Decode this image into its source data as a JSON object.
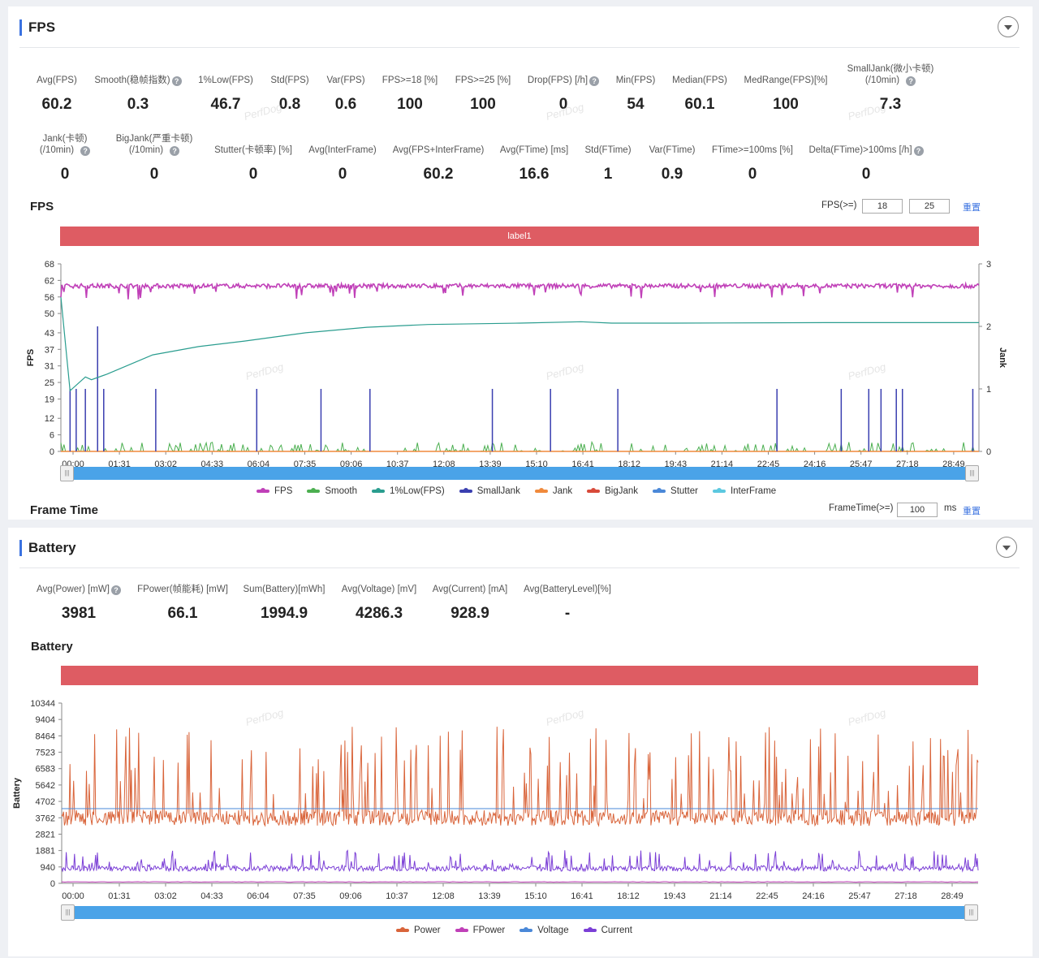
{
  "fps_panel": {
    "title": "FPS",
    "metrics_row1": [
      {
        "label": "Avg(FPS)",
        "value": "60.2",
        "help": false
      },
      {
        "label": "Smooth(稳帧指数)",
        "value": "0.3",
        "help": true
      },
      {
        "label": "1%Low(FPS)",
        "value": "46.7",
        "help": false
      },
      {
        "label": "Std(FPS)",
        "value": "0.8",
        "help": false
      },
      {
        "label": "Var(FPS)",
        "value": "0.6",
        "help": false
      },
      {
        "label": "FPS>=18 [%]",
        "value": "100",
        "help": false
      },
      {
        "label": "FPS>=25 [%]",
        "value": "100",
        "help": false
      },
      {
        "label": "Drop(FPS) [/h]",
        "value": "0",
        "help": true
      },
      {
        "label": "Min(FPS)",
        "value": "54",
        "help": false
      },
      {
        "label": "Median(FPS)",
        "value": "60.1",
        "help": false
      },
      {
        "label": "MedRange(FPS)[%]",
        "value": "100",
        "help": false
      },
      {
        "label": "SmallJank(微小卡顿)",
        "label2": "(/10min)",
        "value": "7.3",
        "help": true
      }
    ],
    "metrics_row2": [
      {
        "label": "Jank(卡顿)",
        "label2": "(/10min)",
        "value": "0",
        "help": true
      },
      {
        "label": "BigJank(严重卡顿)",
        "label2": "(/10min)",
        "value": "0",
        "help": true
      },
      {
        "label": "Stutter(卡顿率) [%]",
        "value": "0",
        "help": false
      },
      {
        "label": "Avg(InterFrame)",
        "value": "0",
        "help": false
      },
      {
        "label": "Avg(FPS+InterFrame)",
        "value": "60.2",
        "help": false
      },
      {
        "label": "Avg(FTime) [ms]",
        "value": "16.6",
        "help": false
      },
      {
        "label": "Std(FTime)",
        "value": "1",
        "help": false
      },
      {
        "label": "Var(FTime)",
        "value": "0.9",
        "help": false
      },
      {
        "label": "FTime>=100ms [%]",
        "value": "0",
        "help": false
      },
      {
        "label": "Delta(FTime)>100ms [/h]",
        "value": "0",
        "help": true
      }
    ],
    "chart_title": "FPS",
    "threshold_label": "FPS(>=)",
    "threshold_1": "18",
    "threshold_2": "25",
    "reset_label": "重置",
    "label_band": "label1",
    "frame_time_title": "Frame Time",
    "frametime_label": "FrameTime(>=)",
    "frametime_value": "100",
    "frametime_unit": "ms",
    "frametime_reset": "重置",
    "slider_handle_glyph": "|||",
    "watermark": "PerfDog"
  },
  "battery_panel": {
    "title": "Battery",
    "metrics": [
      {
        "label": "Avg(Power) [mW]",
        "value": "3981",
        "help": true
      },
      {
        "label": "FPower(帧能耗) [mW]",
        "value": "66.1",
        "help": false
      },
      {
        "label": "Sum(Battery)[mWh]",
        "value": "1994.9",
        "help": false
      },
      {
        "label": "Avg(Voltage) [mV]",
        "value": "4286.3",
        "help": false
      },
      {
        "label": "Avg(Current) [mA]",
        "value": "928.9",
        "help": false
      },
      {
        "label": "Avg(BatteryLevel)[%]",
        "value": "-",
        "help": false
      }
    ],
    "chart_title": "Battery",
    "label_band": "",
    "slider_handle_glyph": "|||",
    "watermark": "PerfDog"
  },
  "colors": {
    "fps": "#c040b8",
    "smooth": "#4caf50",
    "low1": "#2a9d8f",
    "smalljank": "#3a3fb0",
    "jank": "#f08a3c",
    "bigjank": "#d84a3a",
    "stutter": "#4a88d8",
    "interframe": "#5cc8e0",
    "power": "#d9643a",
    "fpower": "#c040b8",
    "voltage": "#4a88d8",
    "current": "#7b3fd6",
    "band": "#de5c63",
    "accent": "#3a72e0"
  },
  "chart_data": [
    {
      "type": "line",
      "title": "FPS",
      "ylabel": "FPS",
      "y2label": "Jank",
      "x_ticks": [
        "00:00",
        "01:31",
        "03:02",
        "04:33",
        "06:04",
        "07:35",
        "09:06",
        "10:37",
        "12:08",
        "13:39",
        "15:10",
        "16:41",
        "18:12",
        "19:43",
        "21:14",
        "22:45",
        "24:16",
        "25:47",
        "27:18",
        "28:49"
      ],
      "y_ticks": [
        0,
        6,
        12,
        19,
        25,
        31,
        37,
        43,
        50,
        56,
        62,
        68
      ],
      "y2_ticks": [
        0,
        1,
        2,
        3
      ],
      "ylim": [
        0,
        68
      ],
      "y2lim": [
        0,
        3
      ],
      "x_range_minutes": [
        0,
        30.0
      ],
      "legend": [
        "FPS",
        "Smooth",
        "1%Low(FPS)",
        "SmallJank",
        "Jank",
        "BigJank",
        "Stutter",
        "InterFrame"
      ],
      "series": [
        {
          "name": "FPS",
          "approx": "stable around 60 (range 54–62)",
          "values": [
            61,
            60,
            60,
            60,
            60,
            60,
            60,
            60,
            60,
            60,
            60,
            60,
            60,
            60,
            60,
            60,
            60,
            60,
            60,
            60
          ]
        },
        {
          "name": "1%Low(FPS)",
          "x_minutes": [
            0,
            0.3,
            0.8,
            1.0,
            1.5,
            3.0,
            4.5,
            6.0,
            8.0,
            10.0,
            12.0,
            15.0,
            17.0,
            18.0,
            20.0,
            25.0,
            28.0,
            30.0
          ],
          "values": [
            56,
            22,
            27,
            26,
            28,
            35,
            38,
            40,
            43,
            45,
            46,
            46.5,
            47,
            46.5,
            46.5,
            46.7,
            46.7,
            46.7
          ]
        },
        {
          "name": "SmallJank",
          "axis": "Jank",
          "spike_minutes": [
            0.3,
            0.5,
            0.8,
            1.2,
            1.4,
            3.1,
            6.4,
            8.5,
            10.1,
            14.1,
            16.0,
            18.2,
            23.4,
            25.5,
            26.4,
            26.8,
            27.3,
            27.5,
            29.8
          ],
          "spike_values": [
            1,
            1,
            1,
            2,
            1,
            1,
            1,
            1,
            1,
            1,
            1,
            1,
            1,
            1,
            1,
            1,
            1,
            1,
            1
          ]
        },
        {
          "name": "Smooth",
          "approx": "small noise near 0"
        },
        {
          "name": "Jank",
          "values": [
            0
          ]
        },
        {
          "name": "BigJank",
          "values": [
            0
          ]
        },
        {
          "name": "Stutter",
          "values": [
            0
          ]
        },
        {
          "name": "InterFrame",
          "values": [
            0
          ]
        }
      ]
    },
    {
      "type": "line",
      "title": "Battery",
      "ylabel": "Battery",
      "x_ticks": [
        "00:00",
        "01:31",
        "03:02",
        "04:33",
        "06:04",
        "07:35",
        "09:06",
        "10:37",
        "12:08",
        "13:39",
        "15:10",
        "16:41",
        "18:12",
        "19:43",
        "21:14",
        "22:45",
        "24:16",
        "25:47",
        "27:18",
        "28:49"
      ],
      "y_ticks": [
        0,
        940,
        1881,
        2821,
        3762,
        4702,
        5642,
        6583,
        7523,
        8464,
        9404,
        10344
      ],
      "ylim": [
        0,
        10344
      ],
      "x_range_minutes": [
        0,
        30.0
      ],
      "legend": [
        "Power",
        "FPower",
        "Voltage",
        "Current"
      ],
      "series": [
        {
          "name": "Power",
          "approx": "noisy 3000–9500 mW, average 3981"
        },
        {
          "name": "FPower",
          "approx": "~66 mW flat"
        },
        {
          "name": "Voltage",
          "values": [
            4286.3
          ]
        },
        {
          "name": "Current",
          "approx": "noisy 500–2000 mA, average 928.9"
        }
      ]
    }
  ]
}
